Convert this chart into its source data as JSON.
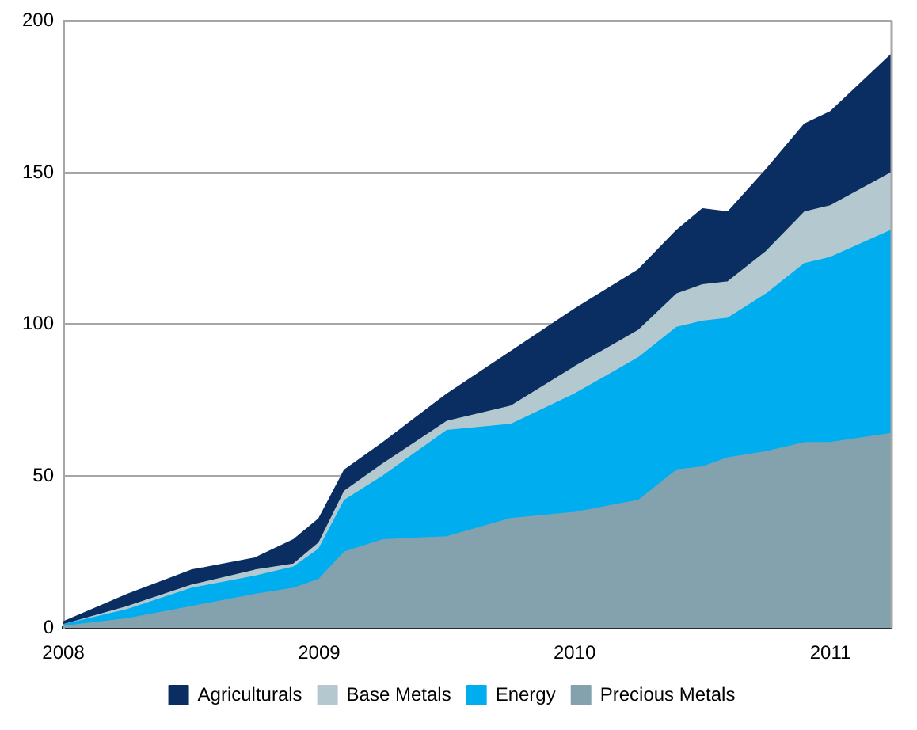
{
  "chart_data": {
    "type": "area",
    "stacked": true,
    "x": [
      2008,
      2008.25,
      2008.5,
      2008.75,
      2008.9,
      2009,
      2009.1,
      2009.25,
      2009.5,
      2009.75,
      2010,
      2010.25,
      2010.4,
      2010.5,
      2010.6,
      2010.75,
      2010.9,
      2011,
      2011.24
    ],
    "series": [
      {
        "name": "Precious Metals",
        "color": "#84a2ad",
        "values": [
          0.5,
          3,
          7,
          11,
          13,
          16,
          25,
          29,
          30,
          36,
          38,
          42,
          52,
          53,
          56,
          58,
          61,
          61,
          64
        ]
      },
      {
        "name": "Energy",
        "color": "#00aeef",
        "values": [
          0.5,
          3,
          6,
          6,
          7,
          10,
          17,
          21,
          35,
          31,
          39,
          47,
          47,
          48,
          46,
          52,
          59,
          61,
          67
        ]
      },
      {
        "name": "Base Metals",
        "color": "#b4c8d0",
        "values": [
          0,
          1,
          1,
          2,
          1,
          2,
          3,
          4,
          3,
          6,
          9,
          9,
          11,
          12,
          12,
          14,
          17,
          17,
          19
        ]
      },
      {
        "name": "Agriculturals",
        "color": "#0a2d62",
        "values": [
          1,
          4,
          5,
          4,
          8,
          8,
          7,
          7,
          9,
          18,
          19,
          20,
          21,
          25,
          23,
          27,
          29,
          31,
          39
        ]
      }
    ],
    "xlim": [
      2008,
      2011.24
    ],
    "xticks": [
      2008,
      2009,
      2010,
      2011
    ],
    "ylim": [
      0,
      200
    ],
    "yticks": [
      0,
      50,
      100,
      150,
      200
    ],
    "grid": "y",
    "legend": "bottom",
    "marker": "none"
  }
}
